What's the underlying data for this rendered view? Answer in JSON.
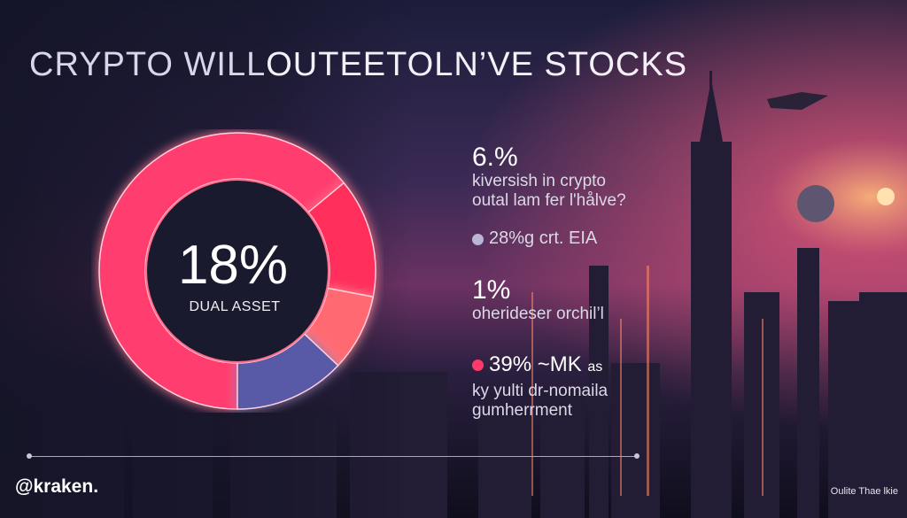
{
  "title": {
    "part1": "CRYPTO WILL",
    "part2": "OUTEETOLN’VE STOCKS"
  },
  "chart_data": {
    "type": "pie",
    "center_value": "18%",
    "center_label": "DUAL ASSET",
    "slices": [
      {
        "color": "#ff3d6e",
        "value": 64
      },
      {
        "color": "#ff2f5a",
        "value": 14
      },
      {
        "color": "#ff6a72",
        "value": 9
      },
      {
        "color": "#585aa8",
        "value": 13
      }
    ]
  },
  "stats": [
    {
      "big": "6.%",
      "lines": [
        "kiversish in crypto",
        "outal lam fer l'hålve?"
      ]
    },
    {
      "dot_color": "#b9b5d2",
      "line": "28%g crt. EIA"
    },
    {
      "big": "1%",
      "lines": [
        "oherideser orchil’l"
      ]
    },
    {
      "dot_color": "#ff3a6a",
      "big": "39% ~MK",
      "big_suffix": "as",
      "lines": [
        "ky yulti dr-nomaila",
        "gumherrment"
      ]
    }
  ],
  "footer": {
    "brand": "@kraken.",
    "credit": "Oulite Thae lkie"
  }
}
